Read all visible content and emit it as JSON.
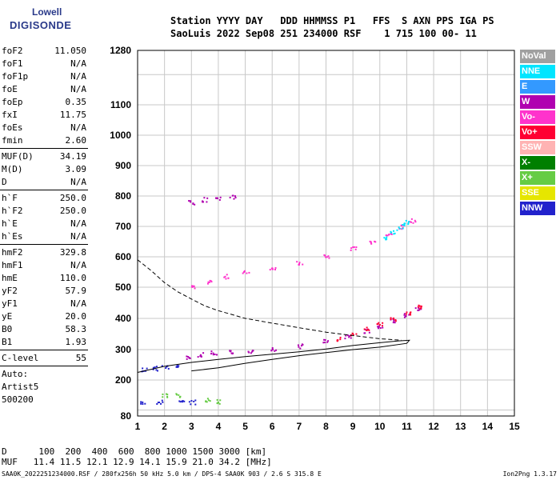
{
  "logo": {
    "line1": "Lowell",
    "line2": "DIGISONDE"
  },
  "header": {
    "line1": "Station YYYY DAY   DDD HHMMSS P1   FFS  S AXN PPS IGA PS",
    "line2": "SaoLuis 2022 Sep08 251 234000 RSF    1 715 100 00- 11"
  },
  "params": [
    {
      "k": "foF2",
      "v": "11.050"
    },
    {
      "k": "foF1",
      "v": "N/A"
    },
    {
      "k": "foF1p",
      "v": "N/A"
    },
    {
      "k": "foE",
      "v": "N/A"
    },
    {
      "k": "foEp",
      "v": "0.35"
    },
    {
      "k": "fxI",
      "v": "11.75"
    },
    {
      "k": "foEs",
      "v": "N/A"
    },
    {
      "k": "fmin",
      "v": "2.60"
    },
    {
      "k": "MUF(D)",
      "v": "34.19"
    },
    {
      "k": "M(D)",
      "v": "3.09"
    },
    {
      "k": "D",
      "v": "N/A"
    },
    {
      "k": "h`F",
      "v": "250.0"
    },
    {
      "k": "h`F2",
      "v": "250.0"
    },
    {
      "k": "h`E",
      "v": "N/A"
    },
    {
      "k": "h`Es",
      "v": "N/A"
    },
    {
      "k": "hmF2",
      "v": "329.8"
    },
    {
      "k": "hmF1",
      "v": "N/A"
    },
    {
      "k": "hmE",
      "v": "110.0"
    },
    {
      "k": "yF2",
      "v": "57.9"
    },
    {
      "k": "yF1",
      "v": "N/A"
    },
    {
      "k": "yE",
      "v": "20.0"
    },
    {
      "k": "B0",
      "v": "58.3"
    },
    {
      "k": "B1",
      "v": "1.93"
    },
    {
      "k": "C-level",
      "v": "55"
    },
    {
      "k": "Auto:",
      "v": ""
    },
    {
      "k": "Artist5",
      "v": ""
    },
    {
      "k": "500200",
      "v": ""
    }
  ],
  "legend": [
    {
      "label": "NoVal",
      "color": "#a0a0a0"
    },
    {
      "label": "NNE",
      "color": "#00e5ff"
    },
    {
      "label": "E",
      "color": "#3399ff"
    },
    {
      "label": "W",
      "color": "#b000b0"
    },
    {
      "label": "Vo-",
      "color": "#ff33cc"
    },
    {
      "label": "Vo+",
      "color": "#ff0033"
    },
    {
      "label": "SSW",
      "color": "#ffb3b3"
    },
    {
      "label": "X-",
      "color": "#007f00"
    },
    {
      "label": "X+",
      "color": "#66cc44"
    },
    {
      "label": "SSE",
      "color": "#e6e600"
    },
    {
      "label": "NNW",
      "color": "#2222cc"
    }
  ],
  "bottom": {
    "line1": "D      100  200  400  600  800 1000 1500 3000 [km]",
    "line2": "MUF   11.4 11.5 12.1 12.9 14.1 15.9 21.0 34.2 [MHz]"
  },
  "footer": "SAA0K_2022251234000.RSF / 280fx256h 50 kHz 5.0 km / DPS-4 SAA0K 903 / 2.6 S 315.8 E",
  "version": "Ion2Png 1.3.17",
  "chart_data": {
    "type": "scatter",
    "title": "",
    "xlabel": "",
    "ylabel": "",
    "xlim": [
      1,
      15
    ],
    "ylim": [
      80,
      1280
    ],
    "x_ticks": [
      1,
      2,
      3,
      4,
      5,
      6,
      7,
      8,
      9,
      10,
      11,
      12,
      13,
      14,
      15
    ],
    "y_ticks": [
      80,
      200,
      300,
      400,
      500,
      600,
      700,
      800,
      900,
      1000,
      1100,
      1280
    ],
    "grid": true,
    "legend_position": "right",
    "series": [
      {
        "color": "#b000b0",
        "points": [
          [
            2.9,
            275
          ],
          [
            3.3,
            285
          ],
          [
            3.8,
            290
          ],
          [
            4.5,
            293
          ],
          [
            5.2,
            297
          ],
          [
            6,
            303
          ],
          [
            7,
            313
          ],
          [
            8,
            327
          ],
          [
            8.8,
            343
          ],
          [
            9.5,
            362
          ],
          [
            10,
            378
          ],
          [
            10.5,
            395
          ],
          [
            11,
            412
          ],
          [
            11.4,
            430
          ]
        ]
      },
      {
        "color": "#ff33cc",
        "points": [
          [
            3,
            500
          ],
          [
            3.6,
            520
          ],
          [
            4.3,
            537
          ],
          [
            5,
            550
          ],
          [
            6,
            565
          ],
          [
            7,
            583
          ],
          [
            8,
            605
          ],
          [
            9,
            628
          ],
          [
            9.7,
            650
          ],
          [
            10.3,
            675
          ],
          [
            10.8,
            700
          ],
          [
            11.2,
            720
          ]
        ]
      },
      {
        "color": "#00e5ff",
        "points": [
          [
            10.2,
            665
          ],
          [
            10.5,
            685
          ],
          [
            10.8,
            702
          ],
          [
            11,
            715
          ]
        ]
      },
      {
        "color": "#ff0033",
        "points": [
          [
            8.5,
            335
          ],
          [
            9,
            350
          ],
          [
            9.5,
            368
          ],
          [
            10,
            385
          ],
          [
            10.5,
            400
          ],
          [
            11,
            418
          ],
          [
            11.5,
            440
          ]
        ]
      },
      {
        "color": "#b000b0",
        "points": [
          [
            3,
            780
          ],
          [
            3.5,
            790
          ],
          [
            4,
            795
          ],
          [
            4.5,
            800
          ]
        ]
      },
      {
        "color": "#2222cc",
        "points": [
          [
            1.2,
            235
          ],
          [
            1.6,
            240
          ],
          [
            2,
            245
          ],
          [
            2.5,
            250
          ],
          [
            1.2,
            128
          ],
          [
            1.8,
            128
          ],
          [
            2.6,
            128
          ],
          [
            3,
            128
          ]
        ]
      },
      {
        "color": "#66cc44",
        "points": [
          [
            2,
            150
          ],
          [
            2.5,
            152
          ],
          [
            3.6,
            135
          ],
          [
            4,
            130
          ]
        ]
      }
    ],
    "curves": [
      {
        "style": "solid",
        "points": [
          [
            1,
            225
          ],
          [
            2,
            245
          ],
          [
            3,
            258
          ],
          [
            4,
            268
          ],
          [
            5,
            277
          ],
          [
            6,
            285
          ],
          [
            7,
            293
          ],
          [
            8,
            302
          ],
          [
            9,
            313
          ],
          [
            10,
            322
          ],
          [
            10.7,
            328
          ],
          [
            11.1,
            330
          ],
          [
            11,
            320
          ],
          [
            10,
            308
          ],
          [
            9,
            300
          ],
          [
            8,
            290
          ],
          [
            7,
            280
          ],
          [
            6,
            268
          ],
          [
            5,
            255
          ],
          [
            4,
            240
          ],
          [
            3,
            230
          ]
        ]
      },
      {
        "style": "dashed",
        "points": [
          [
            1,
            590
          ],
          [
            1.5,
            555
          ],
          [
            2,
            515
          ],
          [
            2.5,
            485
          ],
          [
            3,
            462
          ],
          [
            3.5,
            440
          ],
          [
            4,
            425
          ],
          [
            5,
            400
          ],
          [
            6,
            385
          ],
          [
            7,
            370
          ],
          [
            8,
            356
          ],
          [
            9,
            345
          ],
          [
            10,
            335
          ],
          [
            10.8,
            330
          ]
        ]
      }
    ]
  }
}
